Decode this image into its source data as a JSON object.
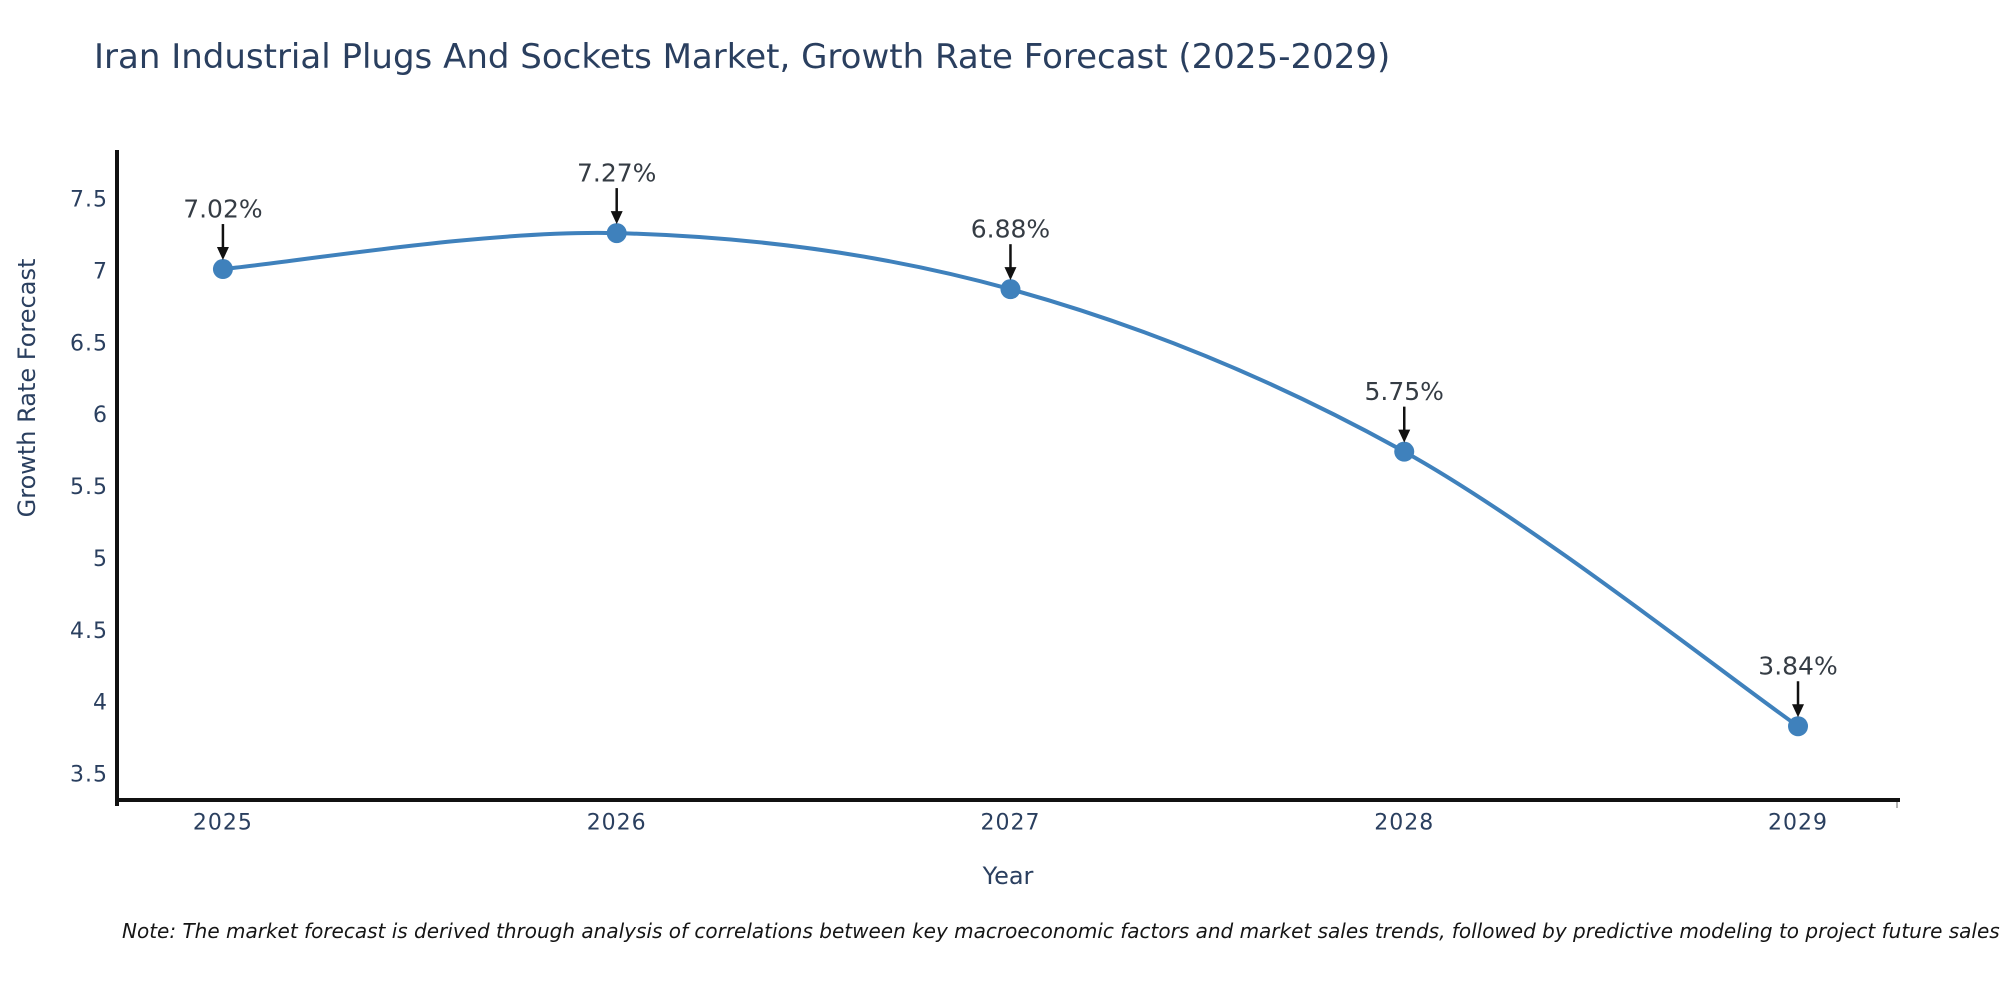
{
  "chart_data": {
    "type": "line",
    "title": "Iran Industrial Plugs And Sockets Market, Growth Rate Forecast (2025-2029)",
    "xlabel": "Year",
    "ylabel": "Growth Rate Forecast",
    "x": [
      2025,
      2026,
      2027,
      2028,
      2029
    ],
    "series": [
      {
        "name": "Growth Rate Forecast",
        "values": [
          7.02,
          7.27,
          6.88,
          5.75,
          3.84
        ]
      }
    ],
    "point_labels": [
      "7.02%",
      "7.27%",
      "6.88%",
      "5.75%",
      "3.84%"
    ],
    "x_tick_labels": [
      "2025",
      "2026",
      "2027",
      "2028",
      "2029"
    ],
    "y_tick_values": [
      3.5,
      4,
      4.5,
      5,
      5.5,
      6,
      6.5,
      7,
      7.5
    ],
    "y_tick_labels": [
      "3.5",
      "4",
      "4.5",
      "5",
      "5.5",
      "6",
      "6.5",
      "7",
      "7.5"
    ],
    "xlim": [
      2024.731,
      2029.259
    ],
    "ylim": [
      3.327,
      7.848
    ],
    "line_shape": "spline",
    "markers": true,
    "grid": false,
    "legend_position": "none"
  },
  "note": {
    "text": "Note: The market forecast is derived through analysis of correlations between key macroeconomic factors and market sales trends, followed by predictive modeling to project future sales"
  },
  "colors": {
    "line": "#3f81bc",
    "marker": "#3f81bc",
    "axis": "#111111",
    "axis_end_tick": "#9a9a9a",
    "text": "#2a3f5f",
    "annotation_text": "#353c44",
    "arrow": "#111111",
    "background": "#ffffff"
  }
}
